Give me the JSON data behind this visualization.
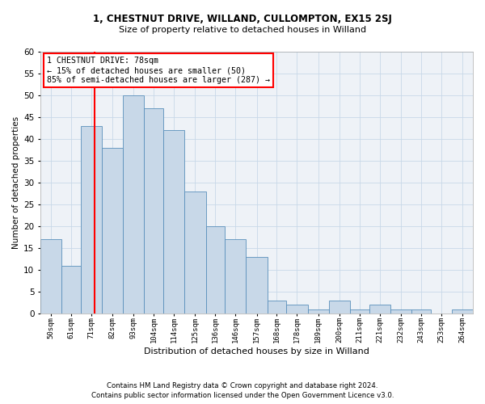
{
  "title1": "1, CHESTNUT DRIVE, WILLAND, CULLOMPTON, EX15 2SJ",
  "title2": "Size of property relative to detached houses in Willand",
  "xlabel": "Distribution of detached houses by size in Willand",
  "ylabel": "Number of detached properties",
  "footnote1": "Contains HM Land Registry data © Crown copyright and database right 2024.",
  "footnote2": "Contains public sector information licensed under the Open Government Licence v3.0.",
  "bar_labels": [
    "50sqm",
    "61sqm",
    "71sqm",
    "82sqm",
    "93sqm",
    "104sqm",
    "114sqm",
    "125sqm",
    "136sqm",
    "146sqm",
    "157sqm",
    "168sqm",
    "178sqm",
    "189sqm",
    "200sqm",
    "211sqm",
    "221sqm",
    "232sqm",
    "243sqm",
    "253sqm",
    "264sqm"
  ],
  "bar_values": [
    17,
    11,
    43,
    38,
    50,
    47,
    42,
    28,
    20,
    17,
    13,
    3,
    2,
    1,
    3,
    1,
    2,
    1,
    1,
    0,
    1
  ],
  "bar_color": "#c8d8e8",
  "bar_edge_color": "#5a90bb",
  "annotation_box_text": "1 CHESTNUT DRIVE: 78sqm\n← 15% of detached houses are smaller (50)\n85% of semi-detached houses are larger (287) →",
  "annotation_box_color": "white",
  "annotation_box_edge_color": "red",
  "vline_x": 78,
  "vline_color": "red",
  "grid_color": "#c8d8e8",
  "bg_color": "#eef2f7",
  "ylim": [
    0,
    60
  ],
  "yticks": [
    0,
    5,
    10,
    15,
    20,
    25,
    30,
    35,
    40,
    45,
    50,
    55,
    60
  ],
  "bin_starts": [
    50,
    61,
    71,
    82,
    93,
    104,
    114,
    125,
    136,
    146,
    157,
    168,
    178,
    189,
    200,
    211,
    221,
    232,
    243,
    253,
    264
  ],
  "bin_widths": [
    11,
    10,
    11,
    11,
    11,
    10,
    11,
    11,
    10,
    11,
    11,
    10,
    11,
    11,
    11,
    10,
    11,
    11,
    10,
    11,
    11
  ],
  "xlim": [
    50,
    275
  ]
}
